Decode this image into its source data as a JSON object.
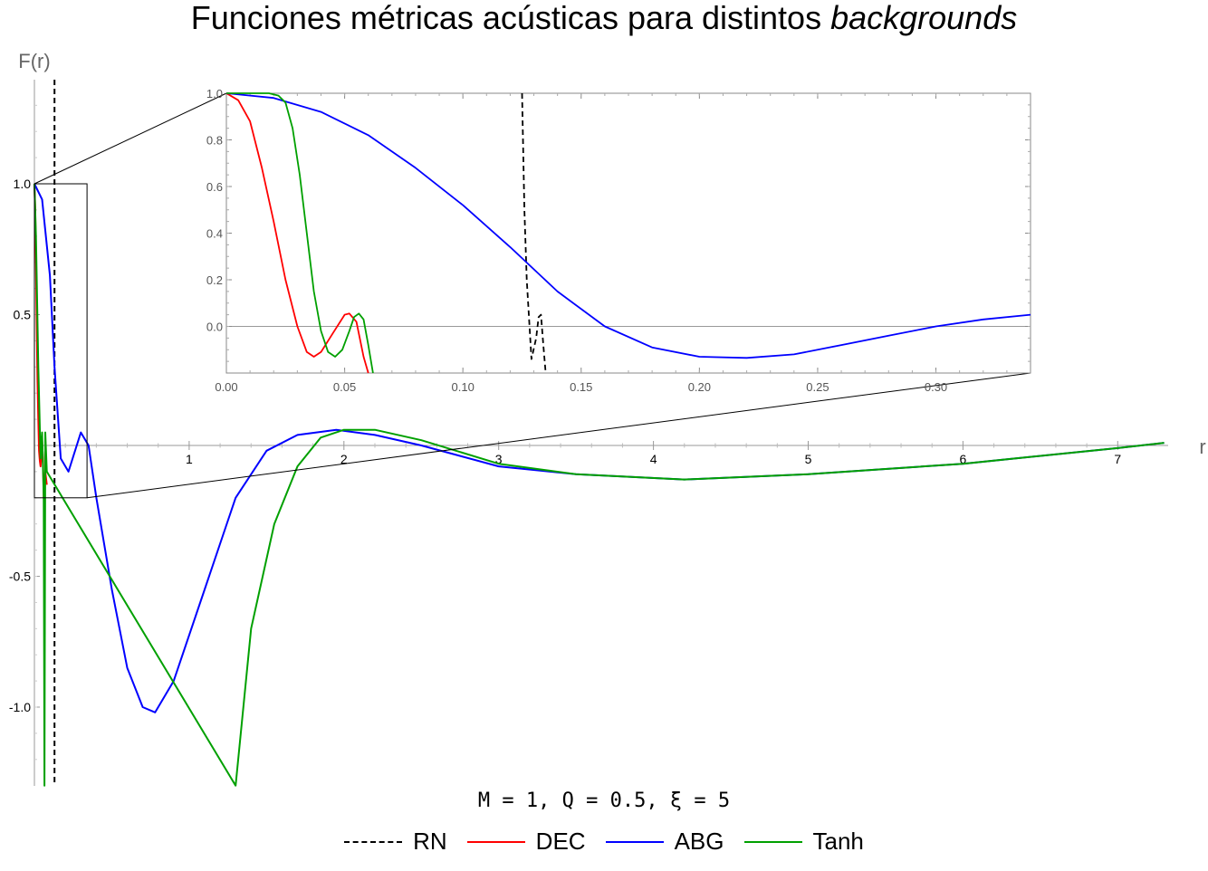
{
  "title": {
    "main": "Funciones métricas acústicas para distintos ",
    "italic": "backgrounds"
  },
  "params_text": "M = 1, Q = 0.5, ξ = 5",
  "chart_data": [
    {
      "type": "line",
      "ylabel": "F(r)",
      "xlabel": "r",
      "xlim": [
        0,
        7.3
      ],
      "ylim": [
        -1.3,
        1.4
      ],
      "x_ticks": [
        1,
        2,
        3,
        4,
        5,
        6,
        7
      ],
      "y_ticks": [
        {
          "v": -1.0,
          "label": "-1.0"
        },
        {
          "v": -0.5,
          "label": "-0.5"
        },
        {
          "v": 0.5,
          "label": "0.5"
        },
        {
          "v": 1.0,
          "label": "1.0"
        }
      ],
      "series": [
        {
          "name": "RN",
          "color": "#000000",
          "dash": true,
          "points": [
            [
              0.13,
              1.4
            ],
            [
              0.13,
              -1.3
            ]
          ]
        },
        {
          "name": "DEC",
          "color": "#ff0000",
          "points": [
            [
              0.0,
              1.0
            ],
            [
              0.005,
              0.9
            ],
            [
              0.01,
              0.7
            ],
            [
              0.015,
              0.45
            ],
            [
              0.02,
              0.25
            ],
            [
              0.025,
              0.1
            ],
            [
              0.03,
              -0.02
            ],
            [
              0.035,
              -0.06
            ],
            [
              0.04,
              -0.08
            ],
            [
              0.045,
              -0.05
            ],
            [
              0.05,
              0.02
            ],
            [
              0.055,
              -0.05
            ],
            [
              0.06,
              -0.2
            ],
            [
              0.07,
              -0.1
            ],
            [
              0.08,
              -0.15
            ]
          ]
        },
        {
          "name": "ABG",
          "color": "#0000ff",
          "points": [
            [
              0.0,
              1.0
            ],
            [
              0.05,
              0.94
            ],
            [
              0.1,
              0.65
            ],
            [
              0.13,
              0.3
            ],
            [
              0.17,
              -0.05
            ],
            [
              0.22,
              -0.1
            ],
            [
              0.3,
              0.05
            ],
            [
              0.35,
              0.0
            ],
            [
              0.4,
              -0.2
            ],
            [
              0.5,
              -0.55
            ],
            [
              0.6,
              -0.85
            ],
            [
              0.7,
              -1.0
            ],
            [
              0.78,
              -1.02
            ],
            [
              0.9,
              -0.9
            ],
            [
              1.1,
              -0.55
            ],
            [
              1.3,
              -0.2
            ],
            [
              1.5,
              -0.02
            ],
            [
              1.7,
              0.04
            ],
            [
              1.95,
              0.06
            ],
            [
              2.2,
              0.04
            ],
            [
              2.5,
              0.0
            ],
            [
              3.0,
              -0.08
            ],
            [
              3.5,
              -0.11
            ],
            [
              4.2,
              -0.13
            ],
            [
              5.0,
              -0.11
            ],
            [
              6.0,
              -0.07
            ],
            [
              7.0,
              -0.01
            ],
            [
              7.3,
              0.01
            ]
          ]
        },
        {
          "name": "Tanh",
          "color": "#00a000",
          "points": [
            [
              0.0,
              1.0
            ],
            [
              0.01,
              0.8
            ],
            [
              0.025,
              0.3
            ],
            [
              0.04,
              -0.05
            ],
            [
              0.05,
              0.05
            ],
            [
              0.06,
              -0.2
            ],
            [
              0.065,
              -1.3
            ],
            [
              0.07,
              0.05
            ],
            [
              0.08,
              -0.1
            ],
            [
              1.3,
              -1.3
            ],
            [
              1.4,
              -0.7
            ],
            [
              1.55,
              -0.3
            ],
            [
              1.7,
              -0.08
            ],
            [
              1.85,
              0.03
            ],
            [
              2.0,
              0.06
            ],
            [
              2.2,
              0.06
            ],
            [
              2.5,
              0.02
            ],
            [
              3.0,
              -0.07
            ],
            [
              3.5,
              -0.11
            ],
            [
              4.2,
              -0.13
            ],
            [
              5.0,
              -0.11
            ],
            [
              6.0,
              -0.07
            ],
            [
              7.0,
              -0.01
            ],
            [
              7.3,
              0.01
            ]
          ]
        }
      ]
    },
    {
      "type": "line",
      "inset": true,
      "xlim": [
        0,
        0.34
      ],
      "ylim": [
        -0.2,
        1.0
      ],
      "x_ticks": [
        {
          "v": 0.0,
          "label": "0.00"
        },
        {
          "v": 0.05,
          "label": "0.05"
        },
        {
          "v": 0.1,
          "label": "0.10"
        },
        {
          "v": 0.15,
          "label": "0.15"
        },
        {
          "v": 0.2,
          "label": "0.20"
        },
        {
          "v": 0.25,
          "label": "0.25"
        },
        {
          "v": 0.3,
          "label": "0.30"
        }
      ],
      "y_ticks": [
        {
          "v": 0.0,
          "label": "0.0"
        },
        {
          "v": 0.2,
          "label": "0.2"
        },
        {
          "v": 0.4,
          "label": "0.4"
        },
        {
          "v": 0.6,
          "label": "0.6"
        },
        {
          "v": 0.8,
          "label": "0.8"
        },
        {
          "v": 1.0,
          "label": "1.0"
        }
      ],
      "series": [
        {
          "name": "RN",
          "color": "#000000",
          "dash": true,
          "points": [
            [
              0.125,
              1.0
            ],
            [
              0.126,
              0.5
            ],
            [
              0.127,
              0.2
            ],
            [
              0.129,
              -0.14
            ],
            [
              0.131,
              -0.05
            ],
            [
              0.132,
              0.04
            ],
            [
              0.133,
              0.05
            ],
            [
              0.134,
              -0.08
            ],
            [
              0.135,
              -0.2
            ]
          ]
        },
        {
          "name": "DEC",
          "color": "#ff0000",
          "points": [
            [
              0.0,
              1.0
            ],
            [
              0.005,
              0.97
            ],
            [
              0.01,
              0.88
            ],
            [
              0.015,
              0.68
            ],
            [
              0.02,
              0.45
            ],
            [
              0.025,
              0.2
            ],
            [
              0.03,
              0.0
            ],
            [
              0.034,
              -0.11
            ],
            [
              0.037,
              -0.13
            ],
            [
              0.04,
              -0.11
            ],
            [
              0.045,
              -0.03
            ],
            [
              0.05,
              0.05
            ],
            [
              0.052,
              0.055
            ],
            [
              0.055,
              0.02
            ],
            [
              0.058,
              -0.13
            ],
            [
              0.06,
              -0.2
            ]
          ]
        },
        {
          "name": "ABG",
          "color": "#0000ff",
          "points": [
            [
              0.0,
              1.0
            ],
            [
              0.02,
              0.98
            ],
            [
              0.04,
              0.92
            ],
            [
              0.06,
              0.82
            ],
            [
              0.08,
              0.68
            ],
            [
              0.1,
              0.52
            ],
            [
              0.12,
              0.34
            ],
            [
              0.14,
              0.15
            ],
            [
              0.16,
              0.0
            ],
            [
              0.18,
              -0.09
            ],
            [
              0.2,
              -0.13
            ],
            [
              0.22,
              -0.135
            ],
            [
              0.24,
              -0.12
            ],
            [
              0.26,
              -0.08
            ],
            [
              0.28,
              -0.04
            ],
            [
              0.3,
              0.0
            ],
            [
              0.32,
              0.03
            ],
            [
              0.34,
              0.05
            ]
          ]
        },
        {
          "name": "Tanh",
          "color": "#00a000",
          "points": [
            [
              0.0,
              1.0
            ],
            [
              0.018,
              1.0
            ],
            [
              0.022,
              0.99
            ],
            [
              0.025,
              0.96
            ],
            [
              0.028,
              0.85
            ],
            [
              0.031,
              0.65
            ],
            [
              0.034,
              0.4
            ],
            [
              0.037,
              0.15
            ],
            [
              0.04,
              -0.02
            ],
            [
              0.043,
              -0.11
            ],
            [
              0.046,
              -0.13
            ],
            [
              0.049,
              -0.1
            ],
            [
              0.052,
              -0.02
            ],
            [
              0.054,
              0.04
            ],
            [
              0.056,
              0.055
            ],
            [
              0.058,
              0.03
            ],
            [
              0.06,
              -0.08
            ],
            [
              0.062,
              -0.2
            ]
          ]
        }
      ]
    }
  ]
}
